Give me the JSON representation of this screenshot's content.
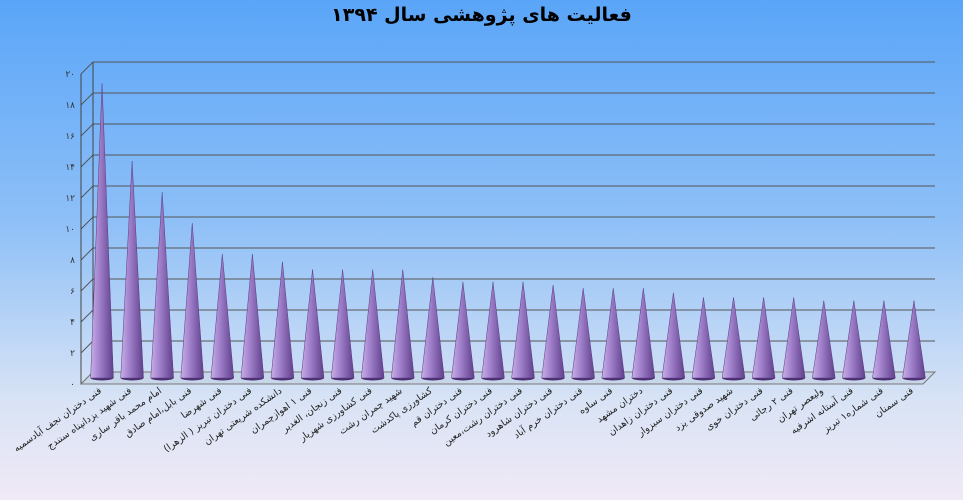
{
  "chart_data": {
    "type": "bar",
    "title": "فعالیت های پژوهشی سال ۱۳۹۴",
    "xlabel": "",
    "ylabel": "",
    "ylim": [
      0,
      20
    ],
    "yticks": [
      "۰",
      "۲",
      "۴",
      "۶",
      "۸",
      "۱۰",
      "۱۲",
      "۱۴",
      "۱۶",
      "۱۸",
      "۲۰"
    ],
    "grid": true,
    "bar_shape": "cone",
    "bar_color": "#8a63b3",
    "categories": [
      "فنی دختران نجف آبادسمیه",
      "فنی شهید یزدانپناه سنندج",
      "امام محمد باقر ساری",
      "فنی بابل،امام صادق",
      "فنی شهرضا",
      "فنی دختران تبریز ( الزهرا)",
      "دانشکده شریعتی تهران",
      "فنی ۱ اهوازچمران",
      "فنی زنجان، الغدیر",
      "فنی کشاورزی شهریار",
      "شهید چمران رشت",
      "کشاورزی پاکدشت",
      "فنی دختران قم",
      "فنی دختران کرمان",
      "فنی دختران رشت،معین",
      "فنی دختران شاهرود",
      "فنی دختران خرم آباد",
      "فنی ساوه",
      "دختران مشهد",
      "فنی دختران زاهدان",
      "فنی دختران سبزوار",
      "شهید صدوقی یزد",
      "فنی دختران خوی",
      "فنی ۲ رجائی",
      "ولیعصر تهران",
      "فنی آستانه اشرفیه",
      "فنی شماره۱ تبریز",
      "فنی سمنان"
    ],
    "values": [
      19,
      14,
      12,
      10,
      8,
      8,
      7.5,
      7,
      7,
      7,
      7,
      6.5,
      6.2,
      6.2,
      6.2,
      6,
      5.8,
      5.8,
      5.8,
      5.5,
      5.2,
      5.2,
      5.2,
      5.2,
      5,
      5,
      5,
      5
    ]
  }
}
